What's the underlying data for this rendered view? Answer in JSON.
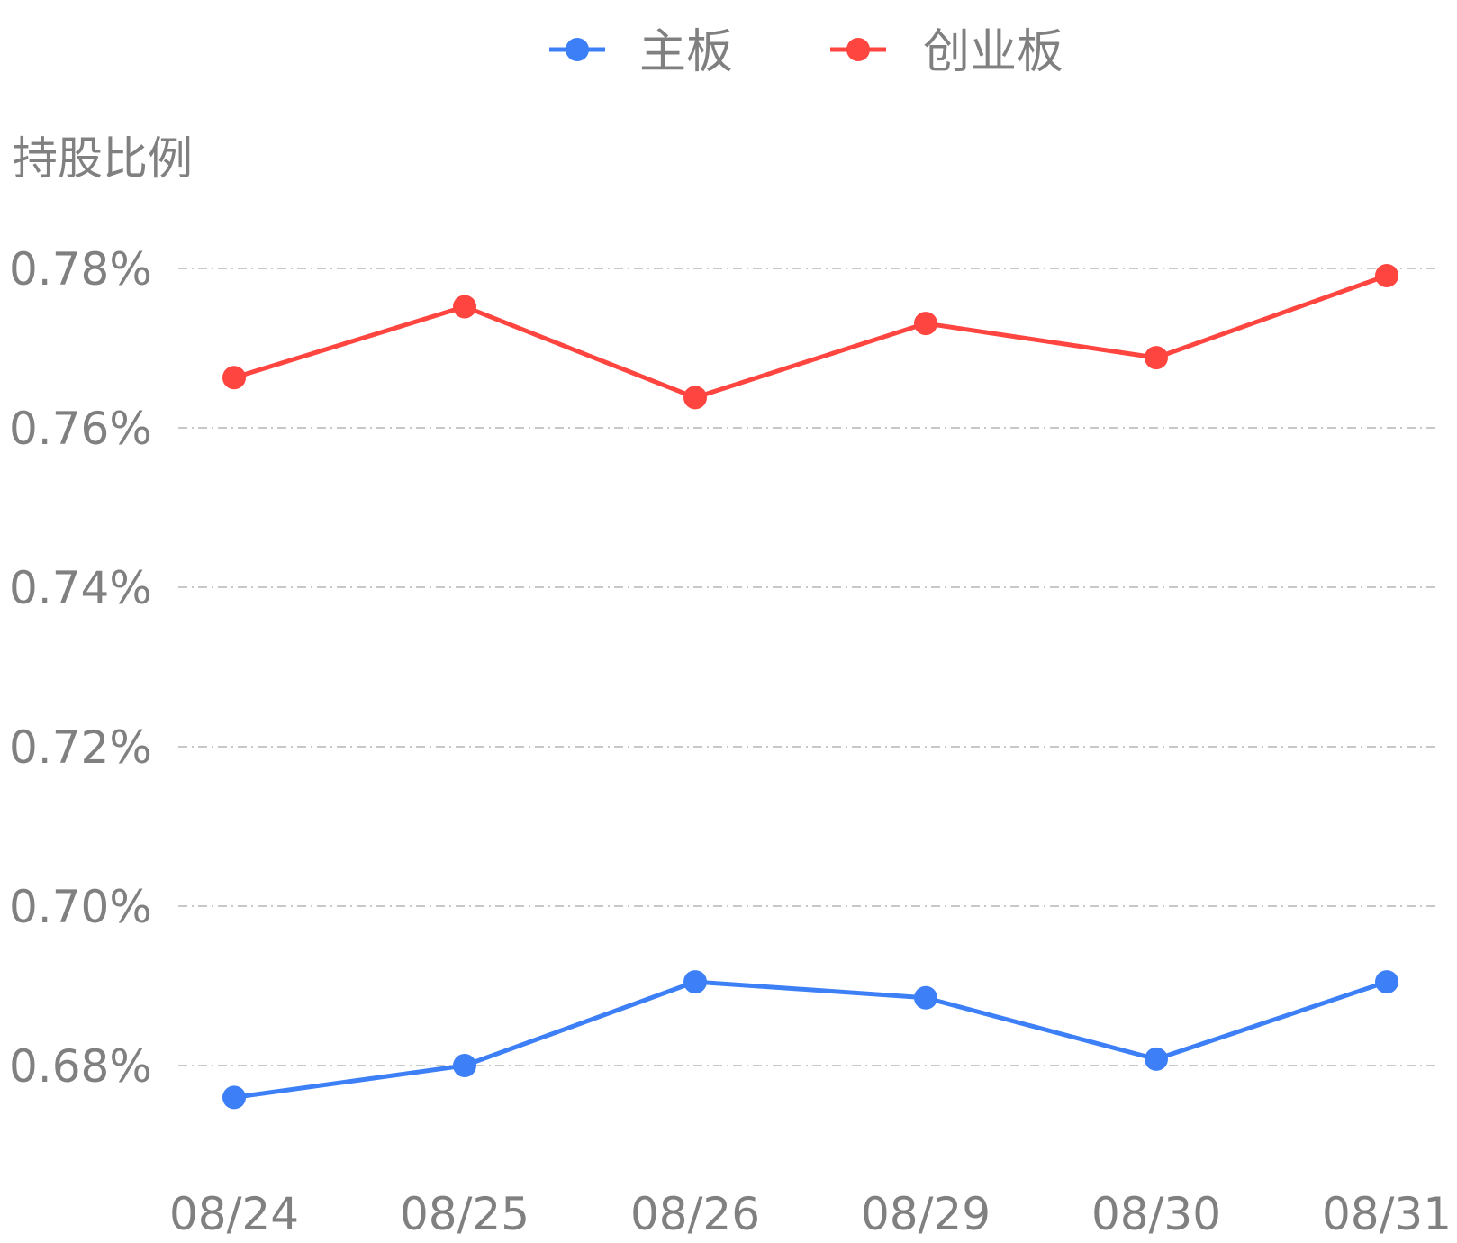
{
  "chart_data": {
    "type": "line",
    "ylabel": "持股比例",
    "x": [
      "08/24",
      "08/25",
      "08/26",
      "08/29",
      "08/30",
      "08/31"
    ],
    "yticks": [
      "0.68%",
      "0.70%",
      "0.72%",
      "0.74%",
      "0.76%",
      "0.78%"
    ],
    "ylim": [
      0.675,
      0.788
    ],
    "grid": true,
    "legend_position": "top",
    "series": [
      {
        "name": "主板",
        "color": "#3d7ff6",
        "values": [
          0.676,
          0.68,
          0.6905,
          0.6885,
          0.6808,
          0.6905
        ]
      },
      {
        "name": "创业板",
        "color": "#ff4540",
        "values": [
          0.7663,
          0.7752,
          0.7638,
          0.7731,
          0.7688,
          0.7791
        ]
      }
    ]
  }
}
